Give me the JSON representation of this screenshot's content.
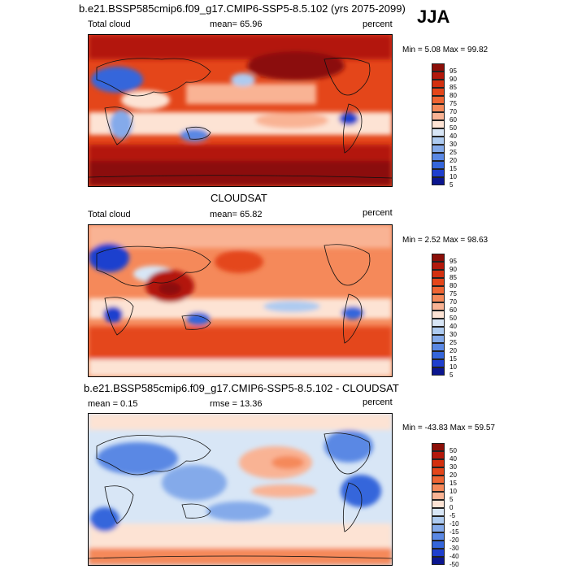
{
  "page": {
    "main_title": "b.e21.BSSP585cmip6.f09_g17.CMIP6-SSP5-8.5.102 (yrs 2075-2099)",
    "season": "JJA"
  },
  "panels": [
    {
      "id": "model",
      "section_title": "",
      "left_label": "Total cloud",
      "center_label": "mean=  65.96",
      "right_label": "percent",
      "minmax": "Min =   5.08 Max =  99.82",
      "levels": [
        "95",
        "90",
        "85",
        "80",
        "75",
        "70",
        "60",
        "50",
        "40",
        "30",
        "25",
        "20",
        "15",
        "10",
        "5"
      ]
    },
    {
      "id": "obs",
      "section_title": "CLOUDSAT",
      "left_label": "Total cloud",
      "center_label": "mean=  65.82",
      "right_label": "percent",
      "minmax": "Min =   2.52 Max =  98.63",
      "levels": [
        "95",
        "90",
        "85",
        "80",
        "75",
        "70",
        "60",
        "50",
        "40",
        "30",
        "25",
        "20",
        "15",
        "10",
        "5"
      ]
    },
    {
      "id": "diff",
      "section_title": "b.e21.BSSP585cmip6.f09_g17.CMIP6-SSP5-8.5.102 - CLOUDSAT",
      "left_label": "mean =   0.15",
      "center_label": "rmse =  13.36",
      "right_label": "percent",
      "minmax": "Min = -43.83 Max =  59.57",
      "levels": [
        "50",
        "40",
        "30",
        "20",
        "15",
        "10",
        "5",
        "0",
        "-5",
        "-10",
        "-15",
        "-20",
        "-30",
        "-40",
        "-50"
      ]
    }
  ],
  "colors": {
    "scale": [
      "#8b0f08",
      "#b3190c",
      "#d3300f",
      "#e4461a",
      "#ef6533",
      "#f5895a",
      "#f9b394",
      "#fde3d4",
      "#d8e6f6",
      "#aecbf0",
      "#84aaea",
      "#5a88e4",
      "#3566db",
      "#1f3fce",
      "#0b168f"
    ]
  }
}
